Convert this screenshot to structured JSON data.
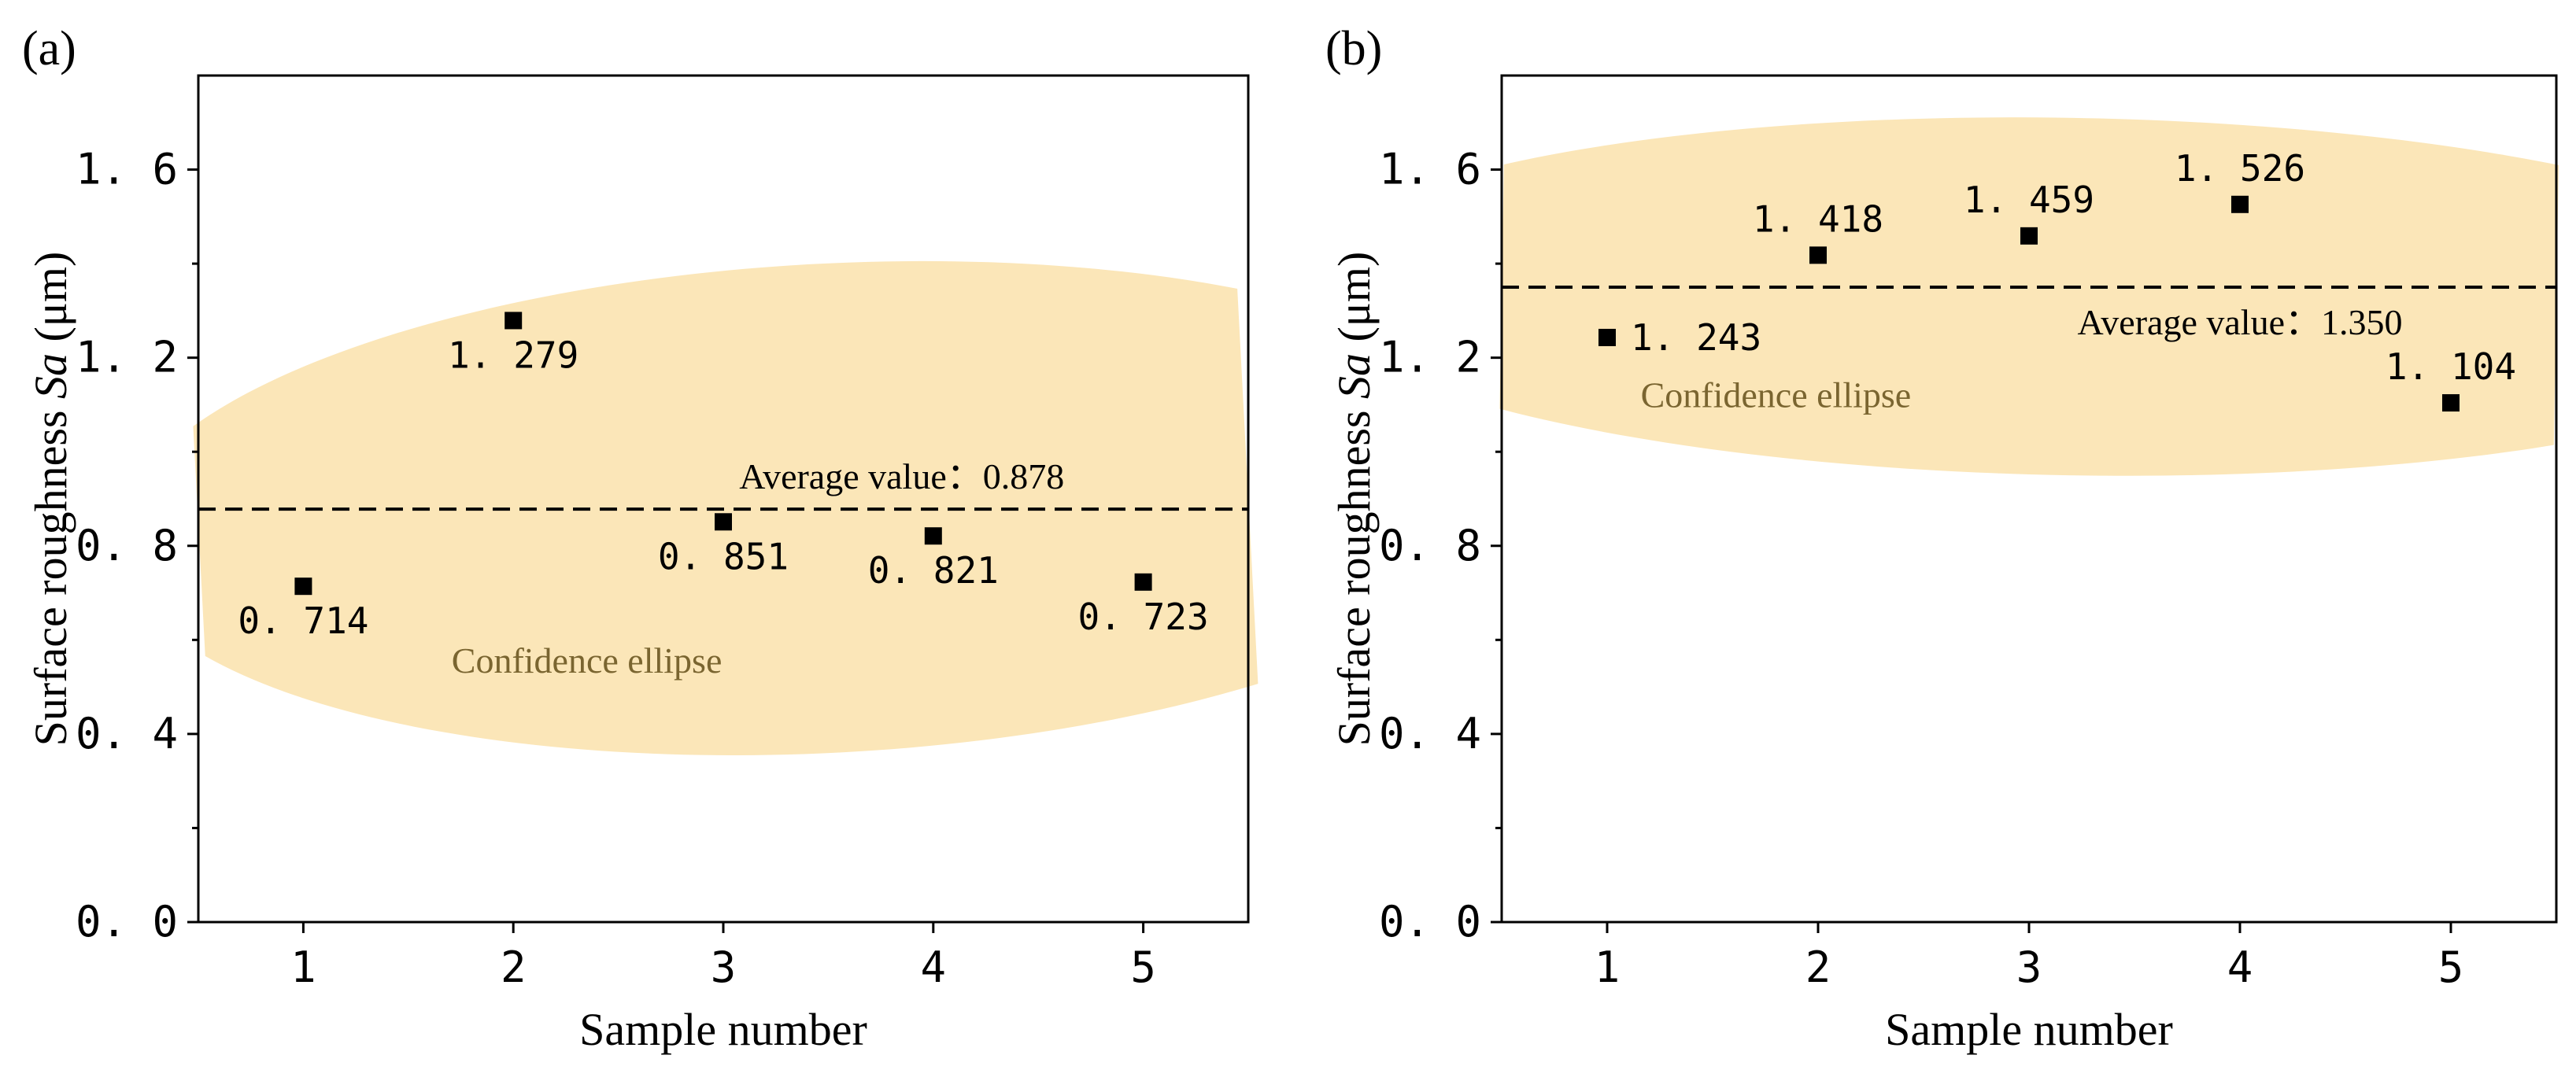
{
  "colors": {
    "ellipse_fill": "#fbe6b8",
    "ellipse_text": "#7a6530",
    "marker": "#000000",
    "axis": "#000000"
  },
  "chart_data": [
    {
      "type": "scatter",
      "panel_label": "(a)",
      "xlabel": "Sample number",
      "ylabel_prefix": "Surface roughness ",
      "ylabel_symbol": "Sa",
      "ylabel_unit": " (μm)",
      "x": [
        1,
        2,
        3,
        4,
        5
      ],
      "values": [
        0.714,
        1.279,
        0.851,
        0.821,
        0.723
      ],
      "value_labels": [
        "0. 714",
        "1. 279",
        "0. 851",
        "0. 821",
        "0. 723"
      ],
      "label_position": [
        "below",
        "below",
        "below",
        "below",
        "below"
      ],
      "xlim": [
        0.5,
        5.5
      ],
      "ylim": [
        0.0,
        1.8
      ],
      "xticks": [
        1,
        2,
        3,
        4,
        5
      ],
      "xtick_labels": [
        "1",
        "2",
        "3",
        "4",
        "5"
      ],
      "yticks": [
        0.0,
        0.4,
        0.8,
        1.2,
        1.6
      ],
      "ytick_labels": [
        "0. 0",
        "0. 4",
        "0. 8",
        "1. 2",
        "1. 6"
      ],
      "average": 0.878,
      "average_label": "Average value：0.878",
      "ellipse_label": "Confidence ellipse",
      "ellipse": {
        "cx": 3.5,
        "cy": 0.88,
        "rx": 3.4,
        "ry": 0.52,
        "rotation_deg": 3
      }
    },
    {
      "type": "scatter",
      "panel_label": "(b)",
      "xlabel": "Sample number",
      "ylabel_prefix": "Surface roughness ",
      "ylabel_symbol": "Sa",
      "ylabel_unit": " (μm)",
      "x": [
        1,
        2,
        3,
        4,
        5
      ],
      "values": [
        1.243,
        1.418,
        1.459,
        1.526,
        1.104
      ],
      "value_labels": [
        "1. 243",
        "1. 418",
        "1. 459",
        "1. 526",
        "1. 104"
      ],
      "label_position": [
        "right",
        "above",
        "above",
        "above",
        "above"
      ],
      "xlim": [
        0.5,
        5.5
      ],
      "ylim": [
        0.0,
        1.8
      ],
      "xticks": [
        1,
        2,
        3,
        4,
        5
      ],
      "xtick_labels": [
        "1",
        "2",
        "3",
        "4",
        "5"
      ],
      "yticks": [
        0.0,
        0.4,
        0.8,
        1.2,
        1.6
      ],
      "ytick_labels": [
        "0. 0",
        "0. 4",
        "0. 8",
        "1. 2",
        "1. 6"
      ],
      "average": 1.35,
      "average_label": "Average value：1.350",
      "ellipse_label": "Confidence ellipse",
      "ellipse": {
        "cx": 3.2,
        "cy": 1.33,
        "rx": 3.7,
        "ry": 0.38,
        "rotation_deg": -1
      }
    }
  ]
}
